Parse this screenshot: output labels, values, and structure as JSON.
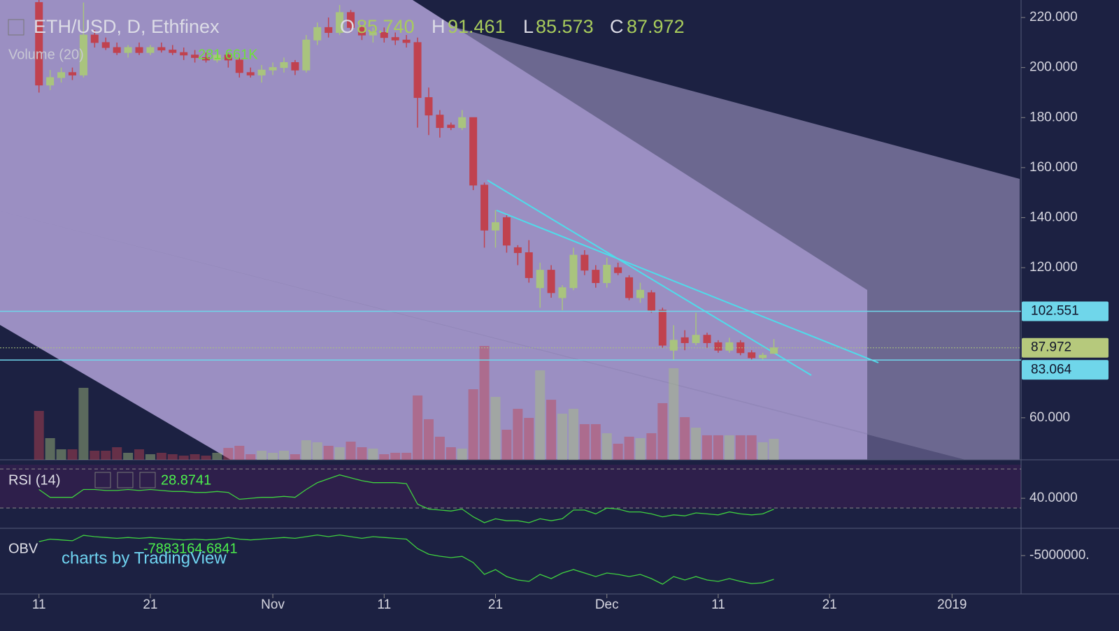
{
  "chart_data": {
    "type": "candlestick",
    "header": {
      "symbol": "ETH/USD, D, Ethfinex",
      "ohlc": [
        {
          "key": "O",
          "label": "85.740"
        },
        {
          "key": "H",
          "label": "91.461"
        },
        {
          "key": "L",
          "label": "85.573"
        },
        {
          "key": "C",
          "label": "87.972"
        }
      ],
      "volume_label": "Volume (20)",
      "volume_value": "281.661K",
      "watermark": "charts by TradingView"
    },
    "open": [
      226,
      193,
      196,
      198,
      197,
      213,
      210,
      208,
      206,
      208,
      206,
      208,
      207,
      206,
      205,
      204,
      203,
      205,
      203,
      198,
      197,
      199,
      200,
      202,
      199,
      211,
      216,
      214,
      222,
      216,
      213,
      214,
      212,
      211,
      210,
      188,
      181,
      177,
      176,
      180,
      153,
      135,
      140,
      128,
      126,
      112,
      119,
      108,
      112,
      125,
      119,
      114,
      120,
      116,
      108,
      110,
      103,
      87,
      92,
      90,
      93,
      90,
      87,
      90,
      86,
      84,
      85.74
    ],
    "high": [
      227,
      199,
      200,
      200,
      226,
      215,
      212,
      210,
      209,
      210,
      209,
      210,
      209,
      208,
      207,
      206,
      206,
      206,
      204,
      200,
      201,
      202,
      204,
      203,
      213,
      218,
      220,
      225,
      223,
      217,
      216,
      216,
      214,
      213,
      212,
      192,
      183,
      178,
      183,
      180,
      154,
      143,
      141,
      129,
      131,
      122,
      121,
      113,
      128,
      127,
      121,
      124,
      122,
      117,
      114,
      111,
      104,
      97,
      95,
      102,
      94,
      91,
      92,
      91,
      87,
      86,
      91.461
    ],
    "low": [
      190,
      191,
      194,
      195,
      196,
      208,
      207,
      205,
      204,
      205,
      205,
      206,
      205,
      203,
      202,
      202,
      202,
      200,
      196,
      196,
      194,
      197,
      198,
      197,
      198,
      209,
      212,
      213,
      214,
      211,
      210,
      210,
      209,
      208,
      176,
      173,
      172,
      175,
      175,
      151,
      128,
      128,
      126,
      121,
      114,
      104,
      108,
      103,
      111,
      117,
      112,
      112,
      117,
      107,
      106,
      102,
      88,
      83,
      87,
      89,
      88,
      86,
      86,
      85,
      83,
      83,
      85.573
    ],
    "close": [
      193,
      196,
      198,
      197,
      213,
      210,
      208,
      206,
      208,
      206,
      208,
      207,
      206,
      205,
      204,
      203,
      205,
      203,
      198,
      197,
      199,
      200,
      202,
      199,
      211,
      216,
      214,
      222,
      216,
      213,
      214,
      212,
      211,
      210,
      188,
      181,
      176,
      176,
      180,
      153,
      135,
      138,
      129,
      126,
      116,
      119,
      110,
      112,
      125,
      119,
      114,
      121,
      118,
      108,
      111,
      103,
      89,
      91,
      90,
      93,
      90,
      87,
      90,
      86,
      84,
      85,
      87.972
    ],
    "volume": [
      657000,
      291000,
      141000,
      141000,
      967000,
      122000,
      122000,
      169000,
      94000,
      141000,
      75000,
      94000,
      75000,
      56000,
      75000,
      56000,
      94000,
      160000,
      188000,
      75000,
      122000,
      94000,
      122000,
      75000,
      263000,
      235000,
      188000,
      169000,
      244000,
      169000,
      150000,
      75000,
      94000,
      94000,
      864000,
      545000,
      310000,
      169000,
      150000,
      948000,
      1530000,
      845000,
      404000,
      685000,
      563000,
      1202000,
      807000,
      620000,
      685000,
      479000,
      479000,
      357000,
      216000,
      310000,
      291000,
      357000,
      761000,
      1230000,
      573000,
      432000,
      329000,
      329000,
      329000,
      329000,
      329000,
      235000,
      281661
    ],
    "volume_ylim": [
      0,
      6178000
    ],
    "up_color": "#a9c47e",
    "down_color": "#c0424f",
    "xlim": [
      -3.5,
      88.2
    ],
    "xticks": [
      {
        "value": 0,
        "label": "11"
      },
      {
        "value": 10,
        "label": "21"
      },
      {
        "value": 21,
        "label": "Nov"
      },
      {
        "value": 31,
        "label": "11"
      },
      {
        "value": 41,
        "label": "21"
      },
      {
        "value": 51,
        "label": "Dec"
      },
      {
        "value": 61,
        "label": "11"
      },
      {
        "value": 71,
        "label": "21"
      },
      {
        "value": 82,
        "label": "2019"
      }
    ],
    "ylim": [
      43.2,
      227
    ],
    "yticks": [
      {
        "value": 60,
        "label": "60.000"
      },
      {
        "value": 120,
        "label": "120.000"
      },
      {
        "value": 140,
        "label": "140.000"
      },
      {
        "value": 160,
        "label": "160.000"
      },
      {
        "value": 180,
        "label": "180.000"
      },
      {
        "value": 200,
        "label": "200.000"
      },
      {
        "value": 220,
        "label": "220.000"
      }
    ],
    "levels": [
      {
        "value": 102.551,
        "label": "102.551"
      },
      {
        "value": 83.064,
        "label": "83.064"
      }
    ],
    "level_color": "#6fd6ea",
    "last_label": "87.972",
    "rsi": {
      "label": "RSI (14)",
      "value_label": "28.8741",
      "color": "#3fd13f",
      "values": [
        49,
        41,
        41,
        41,
        49,
        49,
        48,
        48,
        49,
        48,
        49,
        48,
        47,
        47,
        46,
        46,
        47,
        46,
        39,
        40,
        41,
        41,
        42,
        41,
        49,
        56,
        60,
        64,
        61,
        58,
        56,
        56,
        56,
        55,
        34,
        29,
        28,
        27,
        29,
        21,
        15,
        19,
        17,
        17,
        15,
        19,
        17,
        19,
        28,
        28,
        24,
        30,
        29,
        26,
        26,
        24,
        21,
        23,
        22,
        25,
        24,
        23,
        26,
        24,
        23,
        24,
        28.8741
      ],
      "ylim": [
        10,
        78
      ],
      "yticks": [
        {
          "value": 40,
          "label": "40.0000"
        }
      ],
      "bands": [
        30,
        70
      ]
    },
    "obv": {
      "label": "OBV",
      "value_label": "-7883164.6841",
      "color": "#3fd13f",
      "values": [
        -3300000,
        -3000000,
        -3100000,
        -3200000,
        -2540000,
        -2700000,
        -2800000,
        -2900000,
        -2800000,
        -2900000,
        -2800000,
        -2900000,
        -3000000,
        -3100000,
        -3000000,
        -3100000,
        -3000000,
        -2800000,
        -3000000,
        -3100000,
        -3000000,
        -2900000,
        -2800000,
        -2900000,
        -2700000,
        -2500000,
        -2700000,
        -2500000,
        -2700000,
        -2900000,
        -2700000,
        -2800000,
        -2900000,
        -3000000,
        -4150000,
        -4830000,
        -5080000,
        -5250000,
        -5100000,
        -5850000,
        -7290000,
        -6700000,
        -7550000,
        -7970000,
        -8140000,
        -7290000,
        -7800000,
        -7120000,
        -6700000,
        -7120000,
        -7550000,
        -7120000,
        -7290000,
        -7550000,
        -7290000,
        -7800000,
        -8480000,
        -7550000,
        -7970000,
        -7550000,
        -7970000,
        -8140000,
        -7800000,
        -8140000,
        -8400000,
        -8310000,
        -7883164.6841
      ],
      "ylim": [
        -9500000,
        -1850000
      ],
      "yticks": [
        {
          "value": -5000000,
          "label": "-5000000."
        }
      ]
    }
  }
}
